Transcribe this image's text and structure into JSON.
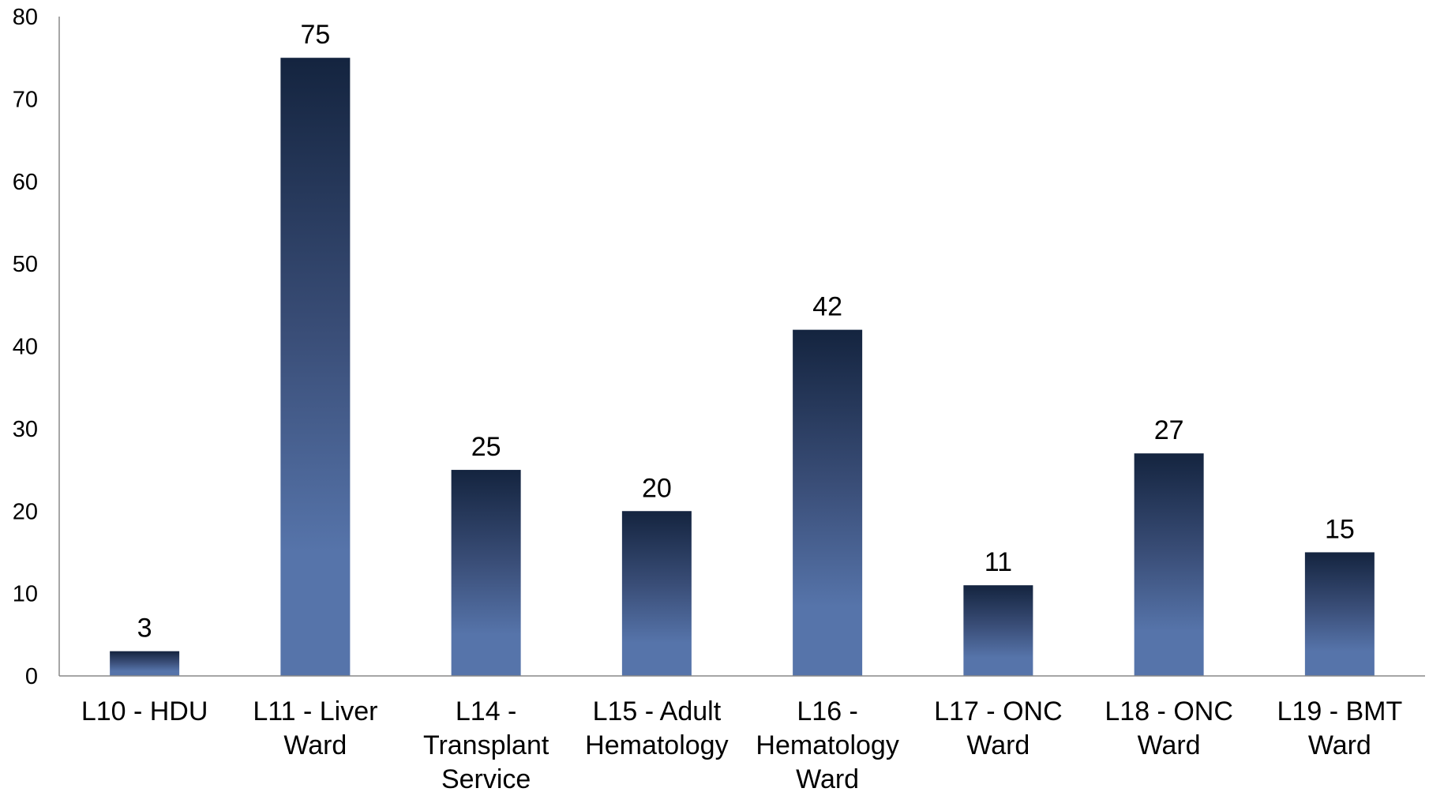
{
  "chart_data": {
    "type": "bar",
    "title": "",
    "xlabel": "",
    "ylabel": "",
    "ylim": [
      0,
      80
    ],
    "yticks": [
      0,
      10,
      20,
      30,
      40,
      50,
      60,
      70,
      80
    ],
    "grid": false,
    "legend": "none",
    "categories": [
      "L10 - HDU",
      "L11 - Liver Ward",
      "L14 - Transplant Service",
      "L15 - Adult Hematology",
      "L16 - Hematology Ward",
      "L17 - ONC Ward",
      "L18 - ONC Ward",
      "L19 - BMT Ward"
    ],
    "category_lines": [
      [
        "L10 - HDU"
      ],
      [
        "L11 - Liver",
        "Ward"
      ],
      [
        "L14 -",
        "Transplant",
        "Service"
      ],
      [
        "L15 - Adult",
        "Hematology"
      ],
      [
        "L16 -",
        "Hematology",
        "Ward"
      ],
      [
        "L17 - ONC",
        "Ward"
      ],
      [
        "L18 - ONC",
        "Ward"
      ],
      [
        "L19 - BMT",
        "Ward"
      ]
    ],
    "values": [
      3,
      75,
      25,
      20,
      42,
      11,
      27,
      15
    ],
    "data_labels": [
      "3",
      "75",
      "25",
      "20",
      "42",
      "11",
      "27",
      "15"
    ],
    "colors": {
      "bar_top": "#14243f",
      "bar_mid": "#3a4e78",
      "bar_bottom": "#5674aa",
      "axis": "#888888"
    }
  }
}
